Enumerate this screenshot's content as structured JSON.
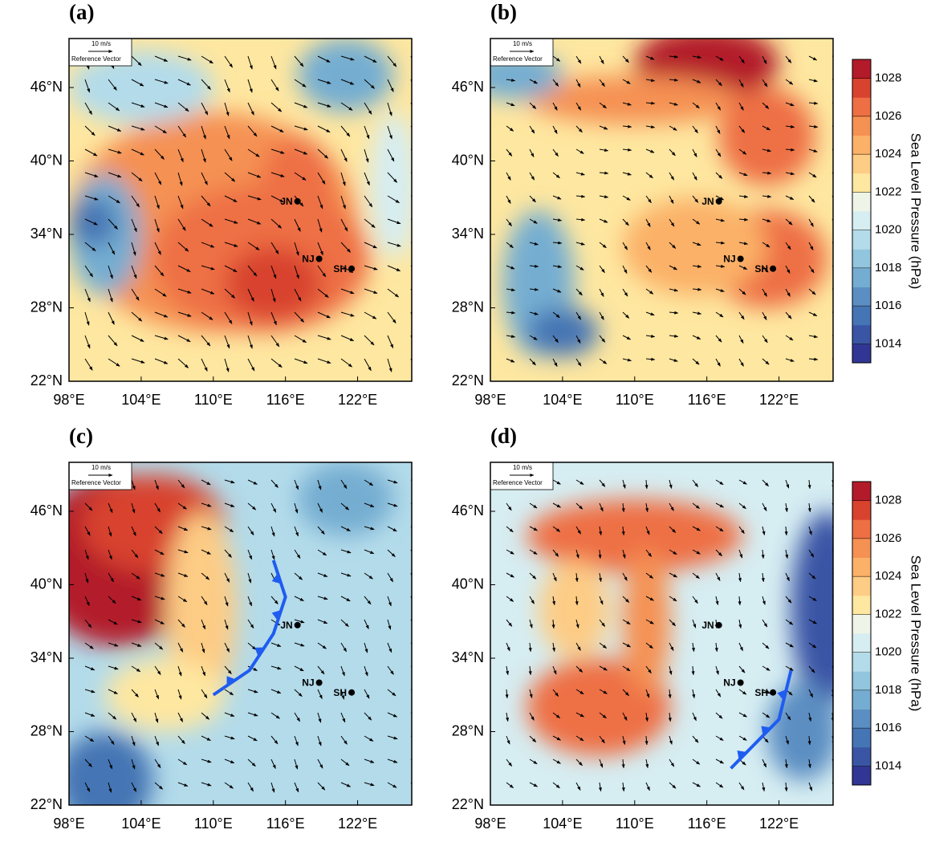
{
  "panels": [
    {
      "label": "(a)",
      "base": 1022,
      "field": [
        {
          "lon": 110,
          "lat": 35,
          "value": 1025,
          "rx": 12,
          "ry": 9
        },
        {
          "lon": 114,
          "lat": 32,
          "value": 1026,
          "rx": 9,
          "ry": 6
        },
        {
          "lon": 115,
          "lat": 30,
          "value": 1027,
          "rx": 4,
          "ry": 3
        },
        {
          "lon": 117,
          "lat": 38,
          "value": 1026,
          "rx": 3,
          "ry": 4
        },
        {
          "lon": 101,
          "lat": 34,
          "value": 1017,
          "rx": 3,
          "ry": 5
        },
        {
          "lon": 100,
          "lat": 35,
          "value": 1015,
          "rx": 2,
          "ry": 2
        },
        {
          "lon": 104,
          "lat": 46,
          "value": 1019,
          "rx": 6,
          "ry": 3
        },
        {
          "lon": 121,
          "lat": 47,
          "value": 1017,
          "rx": 4,
          "ry": 3
        },
        {
          "lon": 125,
          "lat": 38,
          "value": 1020,
          "rx": 2,
          "ry": 6
        }
      ],
      "wind": {
        "u": 4,
        "v": -4
      }
    },
    {
      "label": "(b)",
      "base": 1022,
      "field": [
        {
          "lon": 116,
          "lat": 48,
          "value": 1028,
          "rx": 6,
          "ry": 3
        },
        {
          "lon": 110,
          "lat": 45,
          "value": 1025,
          "rx": 9,
          "ry": 2
        },
        {
          "lon": 121,
          "lat": 42,
          "value": 1026,
          "rx": 4,
          "ry": 4
        },
        {
          "lon": 121,
          "lat": 32,
          "value": 1026,
          "rx": 5,
          "ry": 4
        },
        {
          "lon": 115,
          "lat": 33,
          "value": 1024,
          "rx": 6,
          "ry": 4
        },
        {
          "lon": 102,
          "lat": 30,
          "value": 1017,
          "rx": 3,
          "ry": 6
        },
        {
          "lon": 104,
          "lat": 26,
          "value": 1015,
          "rx": 3,
          "ry": 2
        },
        {
          "lon": 100,
          "lat": 47,
          "value": 1017,
          "rx": 4,
          "ry": 2
        }
      ],
      "wind": {
        "u": 3,
        "v": -2
      }
    },
    {
      "label": "(c)",
      "base": 1019,
      "field": [
        {
          "lon": 102,
          "lat": 42,
          "value": 1028,
          "rx": 7,
          "ry": 7
        },
        {
          "lon": 105,
          "lat": 45,
          "value": 1027,
          "rx": 6,
          "ry": 4
        },
        {
          "lon": 109,
          "lat": 38,
          "value": 1023,
          "rx": 3,
          "ry": 8
        },
        {
          "lon": 106,
          "lat": 31,
          "value": 1022,
          "rx": 5,
          "ry": 3
        },
        {
          "lon": 101,
          "lat": 24,
          "value": 1015,
          "rx": 4,
          "ry": 4
        },
        {
          "lon": 121,
          "lat": 47,
          "value": 1017,
          "rx": 4,
          "ry": 3
        }
      ],
      "wind": {
        "u": 3,
        "v": -3
      },
      "front": [
        [
          110,
          31
        ],
        [
          113,
          33
        ],
        [
          115,
          36
        ],
        [
          116,
          39
        ],
        [
          115,
          42
        ]
      ]
    },
    {
      "label": "(d)",
      "base": 1020,
      "field": [
        {
          "lon": 110,
          "lat": 44,
          "value": 1026,
          "rx": 9,
          "ry": 3
        },
        {
          "lon": 107,
          "lat": 30,
          "value": 1026,
          "rx": 6,
          "ry": 4
        },
        {
          "lon": 111,
          "lat": 37,
          "value": 1025,
          "rx": 2,
          "ry": 6
        },
        {
          "lon": 105,
          "lat": 38,
          "value": 1023,
          "rx": 3,
          "ry": 4
        },
        {
          "lon": 126,
          "lat": 38,
          "value": 1014,
          "rx": 3,
          "ry": 8
        },
        {
          "lon": 124,
          "lat": 28,
          "value": 1016,
          "rx": 3,
          "ry": 4
        }
      ],
      "wind": {
        "u": 2,
        "v": -3
      },
      "front": [
        [
          118,
          25
        ],
        [
          120,
          27
        ],
        [
          122,
          29
        ],
        [
          123,
          33
        ]
      ]
    }
  ],
  "xlim": [
    98,
    126.5
  ],
  "ylim": [
    22,
    50
  ],
  "xticks": [
    {
      "value": 98,
      "label": "98°E"
    },
    {
      "value": 104,
      "label": "104°E"
    },
    {
      "value": 110,
      "label": "110°E"
    },
    {
      "value": 116,
      "label": "116°E"
    },
    {
      "value": 122,
      "label": "122°E"
    }
  ],
  "yticks": [
    {
      "value": 22,
      "label": "22°N"
    },
    {
      "value": 28,
      "label": "28°N"
    },
    {
      "value": 34,
      "label": "34°N"
    },
    {
      "value": 40,
      "label": "40°N"
    },
    {
      "value": 46,
      "label": "46°N"
    }
  ],
  "cities": [
    {
      "name": "JN",
      "lon": 117,
      "lat": 36.7
    },
    {
      "name": "NJ",
      "lon": 118.8,
      "lat": 32
    },
    {
      "name": "SH",
      "lon": 121.5,
      "lat": 31.2
    }
  ],
  "reference_vector": {
    "label": "10 m/s",
    "caption": "Reference Vector",
    "speed": 10
  },
  "colorbar": {
    "title": "Sea Level Pressure (hPa)",
    "lim": [
      1013,
      1029
    ],
    "ticks": [
      1014,
      1016,
      1018,
      1020,
      1022,
      1024,
      1026,
      1028
    ],
    "colors": [
      "#313695",
      "#3b55a5",
      "#4575b4",
      "#5b8ec2",
      "#74add1",
      "#92c5de",
      "#b3dbea",
      "#d6edf2",
      "#eef4e8",
      "#fee7a0",
      "#fdcc85",
      "#fbb168",
      "#f59152",
      "#ee6f44",
      "#d8432e",
      "#b31b2a"
    ]
  }
}
